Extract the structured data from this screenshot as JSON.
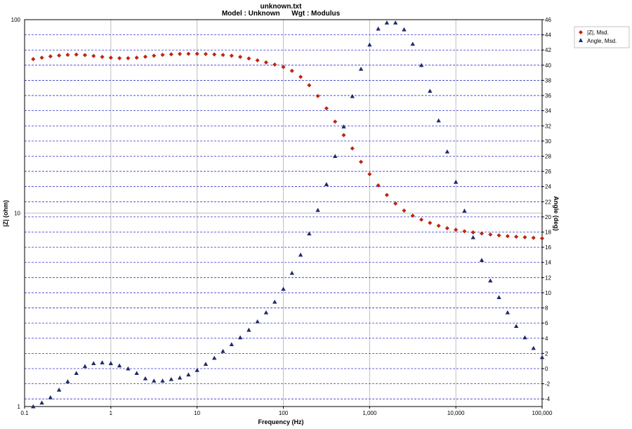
{
  "chart_data": {
    "type": "scatter",
    "title": "unknown.txt",
    "subtitle": "Model : Unknown      Wgt : Modulus",
    "xlabel": "Frequency (Hz)",
    "ylabel": "|Z| (ohm)",
    "y2label": "Angle (deg)",
    "x_scale": "log",
    "y_scale": "log",
    "xlim": [
      0.1,
      100000
    ],
    "ylim": [
      1,
      100
    ],
    "y2lim": [
      -5,
      46
    ],
    "x_tick_labels": [
      "0.1",
      "1",
      "10",
      "100",
      "1,000",
      "10,000",
      "100,000"
    ],
    "y_tick_labels": [
      "1",
      "10",
      "100"
    ],
    "y2_tick_labels": [
      "-4",
      "-2",
      "0",
      "2",
      "4",
      "6",
      "8",
      "10",
      "12",
      "14",
      "16",
      "18",
      "20",
      "22",
      "24",
      "26",
      "28",
      "30",
      "32",
      "34",
      "36",
      "38",
      "40",
      "42",
      "44",
      "46"
    ],
    "grid": true,
    "legend_position": "top-right",
    "series": [
      {
        "name": "|Z|, Msd.",
        "axis": "left",
        "marker": "diamond",
        "color": "#cc2200",
        "x": [
          0.1259,
          0.1585,
          0.1995,
          0.2512,
          0.3162,
          0.3981,
          0.5012,
          0.631,
          0.7943,
          1,
          1.259,
          1.585,
          1.995,
          2.512,
          3.162,
          3.981,
          5.012,
          6.31,
          7.943,
          10,
          12.59,
          15.85,
          19.95,
          25.12,
          31.62,
          39.81,
          50.12,
          63.1,
          79.43,
          100,
          125.9,
          158.5,
          199.5,
          251.2,
          316.2,
          398.1,
          501.2,
          631,
          794.3,
          1000,
          1259,
          1585,
          1995,
          2512,
          3162,
          3981,
          5012,
          6310,
          7943,
          10000,
          12590,
          15850,
          19950,
          25120,
          31620,
          39810,
          50120,
          63100,
          79430,
          100000
        ],
        "y": [
          62.5,
          63.6,
          64.6,
          65.3,
          65.8,
          66,
          65.6,
          64.9,
          64.2,
          63.6,
          63.2,
          63.2,
          63.6,
          64.3,
          65.1,
          65.8,
          66.2,
          66.5,
          66.6,
          66.6,
          66.4,
          66.1,
          65.7,
          65.1,
          64.2,
          63,
          61.6,
          60.1,
          58.6,
          56.9,
          54.4,
          50.6,
          45.8,
          40.3,
          34.8,
          29.7,
          25.3,
          21.6,
          18.4,
          15.9,
          13.9,
          12.4,
          11.2,
          10.3,
          9.7,
          9.25,
          8.9,
          8.6,
          8.35,
          8.2,
          8.05,
          7.95,
          7.85,
          7.75,
          7.67,
          7.6,
          7.55,
          7.5,
          7.45,
          7.4
        ]
      },
      {
        "name": "Angle, Msd.",
        "axis": "right",
        "marker": "triangle",
        "color": "#1f2a6b",
        "x": [
          0.1259,
          0.1585,
          0.1995,
          0.2512,
          0.3162,
          0.3981,
          0.5012,
          0.631,
          0.7943,
          1,
          1.259,
          1.585,
          1.995,
          2.512,
          3.162,
          3.981,
          5.012,
          6.31,
          7.943,
          10,
          12.59,
          15.85,
          19.95,
          25.12,
          31.62,
          39.81,
          50.12,
          63.1,
          79.43,
          100,
          125.9,
          158.5,
          199.5,
          251.2,
          316.2,
          398.1,
          501.2,
          631,
          794.3,
          1000,
          1259,
          1585,
          1995,
          2512,
          3162,
          3981,
          5012,
          6310,
          7943,
          10000,
          12590,
          15850,
          19950,
          25120,
          31620,
          39810,
          50120,
          63100,
          79430,
          100000
        ],
        "y": [
          -5,
          -4.5,
          -3.8,
          -2.8,
          -1.7,
          -0.6,
          0.3,
          0.7,
          0.8,
          0.7,
          0.4,
          0,
          -0.6,
          -1.3,
          -1.6,
          -1.6,
          -1.4,
          -1.2,
          -0.8,
          -0.2,
          0.6,
          1.4,
          2.3,
          3.2,
          4.1,
          5.1,
          6.2,
          7.4,
          8.8,
          10.5,
          12.6,
          15,
          17.8,
          20.9,
          24.3,
          28,
          31.9,
          35.9,
          39.5,
          42.7,
          44.8,
          45.6,
          45.6,
          44.7,
          42.8,
          40,
          36.6,
          32.7,
          28.6,
          24.6,
          20.8,
          17.3,
          14.3,
          11.6,
          9.4,
          7.4,
          5.6,
          4.1,
          2.7,
          1.5
        ]
      }
    ]
  }
}
